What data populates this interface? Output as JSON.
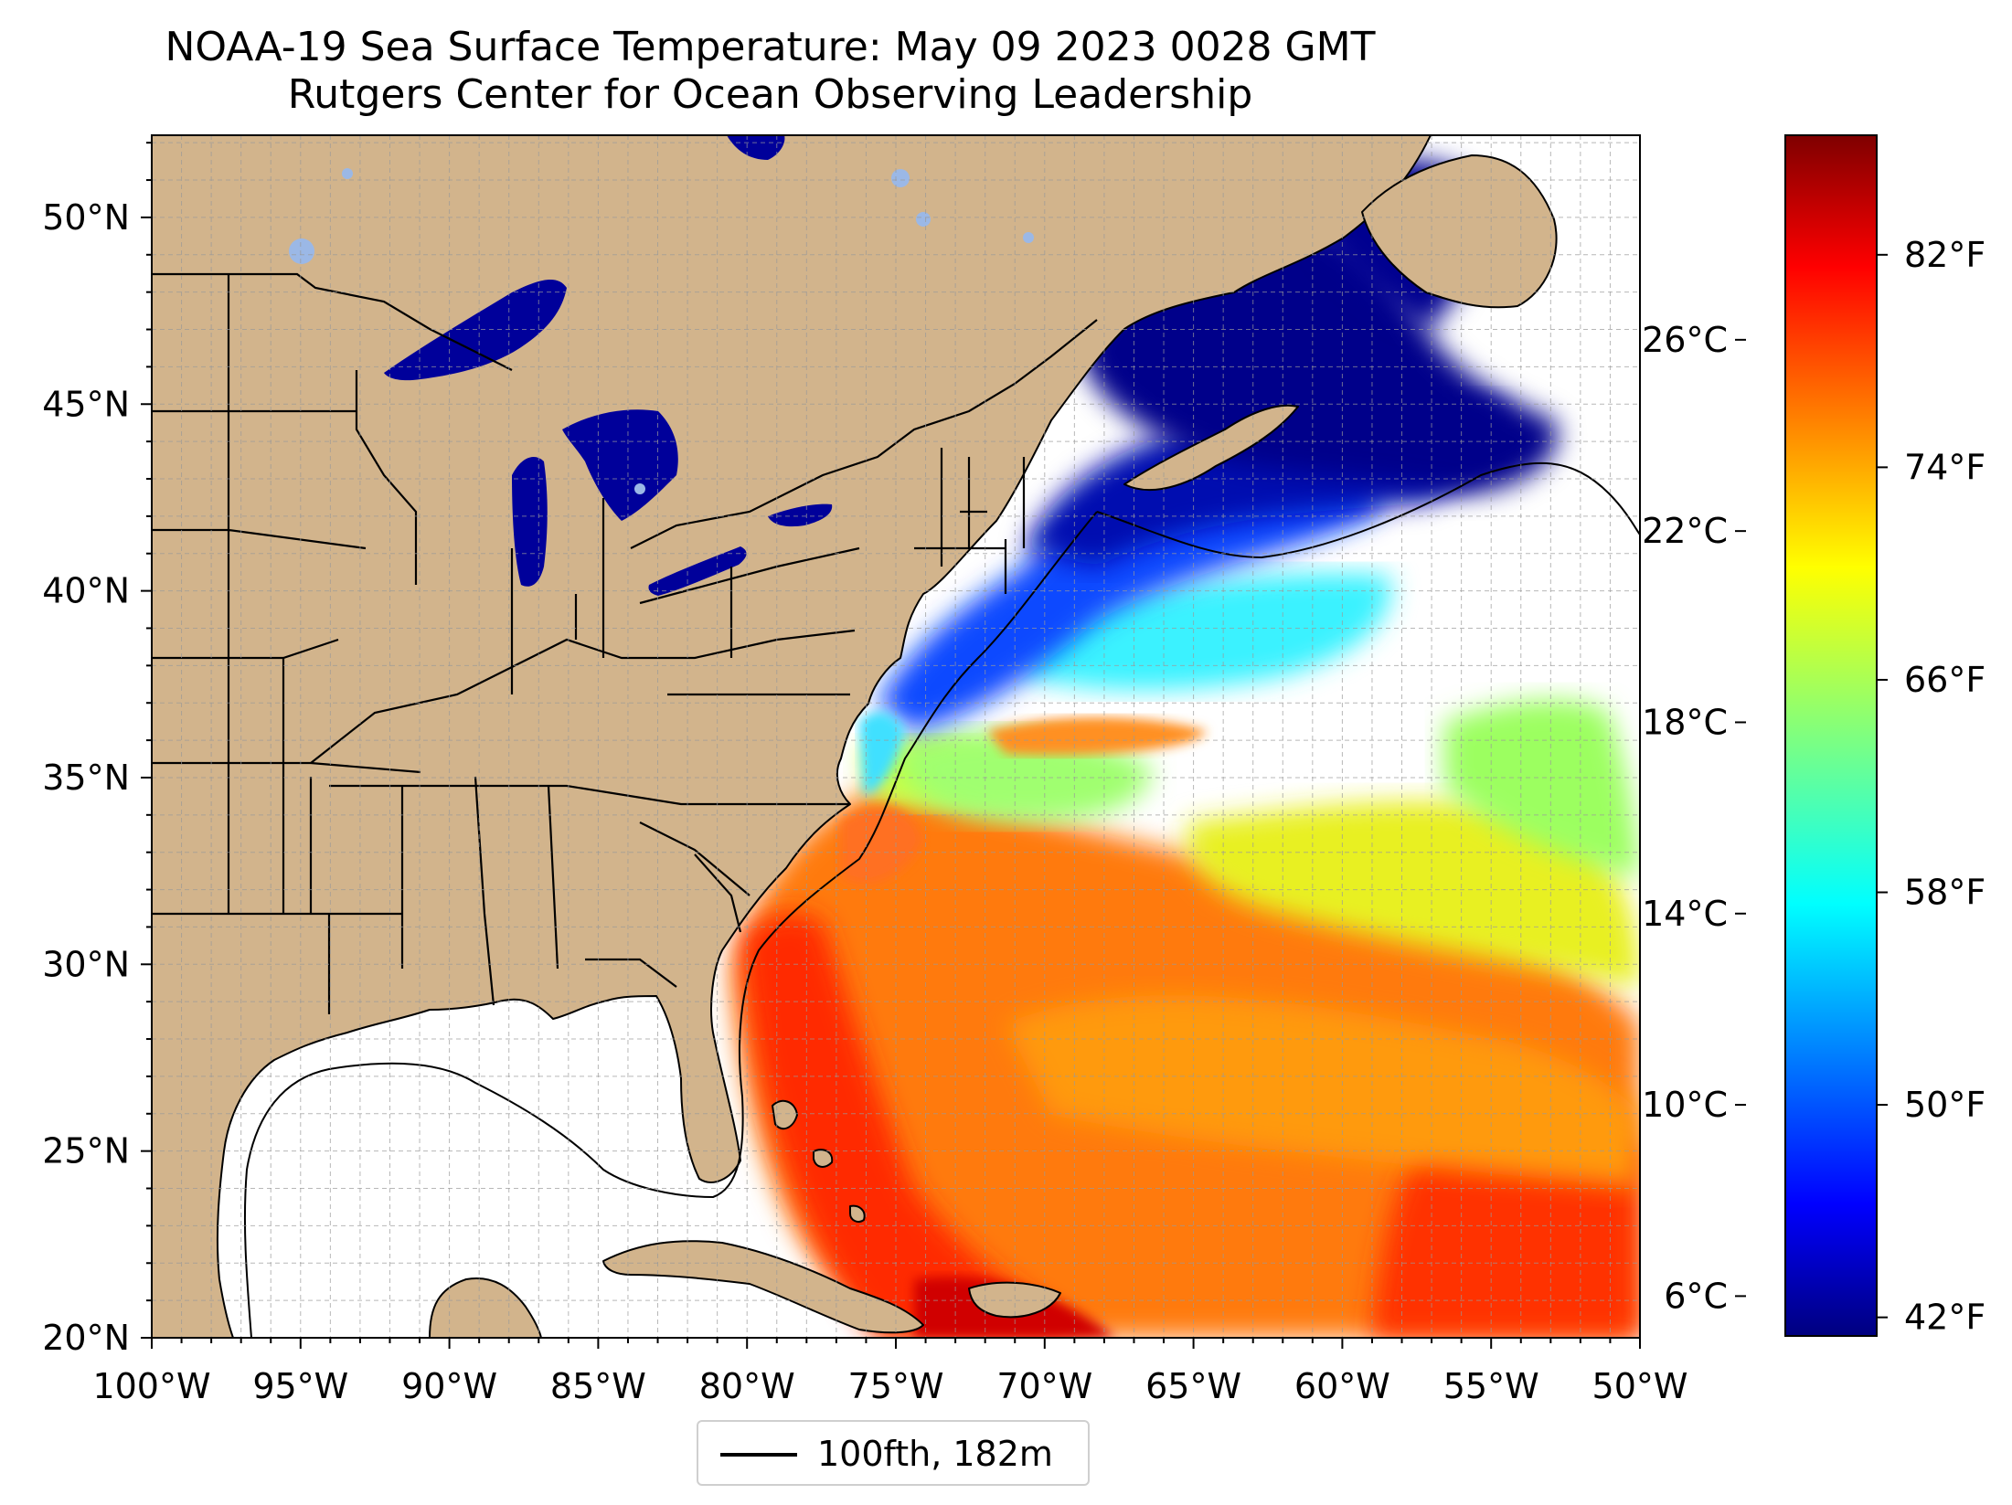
{
  "title": {
    "line1": "NOAA-19 Sea Surface Temperature: May 09 2023 0028 GMT",
    "line2": "Rutgers Center for Ocean Observing Leadership"
  },
  "map": {
    "lon_range": [
      -100,
      -50
    ],
    "lat_range": [
      20,
      52.2
    ],
    "lon_ticks": [
      "100°W",
      "95°W",
      "90°W",
      "85°W",
      "80°W",
      "75°W",
      "70°W",
      "65°W",
      "60°W",
      "55°W",
      "50°W"
    ],
    "lat_ticks": [
      "20°N",
      "25°N",
      "30°N",
      "35°N",
      "40°N",
      "45°N",
      "50°N"
    ],
    "lat_tick_values": [
      20,
      25,
      30,
      35,
      40,
      45,
      50
    ],
    "gridlines": true,
    "land_color": "#d2b48c",
    "lake_color": "#9bb8e6",
    "no_data_color": "#ffffff",
    "colormap": "jet"
  },
  "colorbar": {
    "celsius_ticks": [
      "6°C",
      "10°C",
      "14°C",
      "18°C",
      "22°C",
      "26°C"
    ],
    "celsius_values": [
      6,
      10,
      14,
      18,
      22,
      26
    ],
    "fahrenheit_ticks": [
      "42°F",
      "50°F",
      "58°F",
      "66°F",
      "74°F",
      "82°F"
    ],
    "fahrenheit_values": [
      42,
      50,
      58,
      66,
      74,
      82
    ],
    "range_f": [
      41.3,
      86.5
    ],
    "colors": [
      "#00007f",
      "#0000ff",
      "#007fff",
      "#00ffff",
      "#7fff7f",
      "#ffff00",
      "#ff7f00",
      "#ff0000",
      "#7f0000"
    ]
  },
  "legend": {
    "label": "100fth, 182m"
  }
}
